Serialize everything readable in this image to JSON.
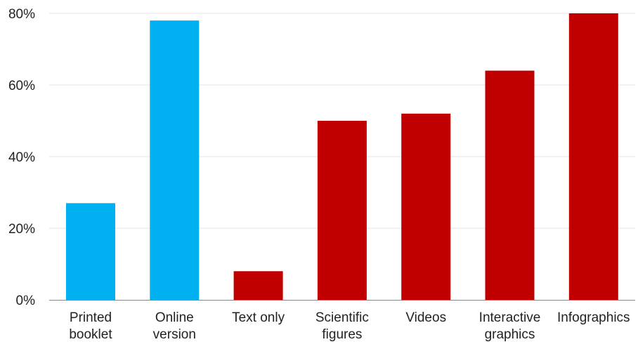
{
  "chart_data": {
    "type": "bar",
    "title": "",
    "xlabel": "",
    "ylabel": "",
    "categories": [
      [
        "Printed",
        "booklet"
      ],
      [
        "Online",
        "version"
      ],
      [
        "Text only"
      ],
      [
        "Scientific",
        "figures"
      ],
      [
        "Videos"
      ],
      [
        "Interactive",
        "graphics"
      ],
      [
        "Infographics"
      ]
    ],
    "values": [
      27,
      78,
      8,
      50,
      52,
      64,
      80
    ],
    "bar_colors": [
      "#00B0F0",
      "#00B0F0",
      "#C00000",
      "#C00000",
      "#C00000",
      "#C00000",
      "#C00000"
    ],
    "ylim": [
      0,
      80
    ],
    "yticks": [
      0,
      20,
      40,
      60,
      80
    ],
    "ytick_labels": [
      "0%",
      "20%",
      "40%",
      "60%",
      "80%"
    ],
    "grid": true,
    "legend": "none"
  }
}
